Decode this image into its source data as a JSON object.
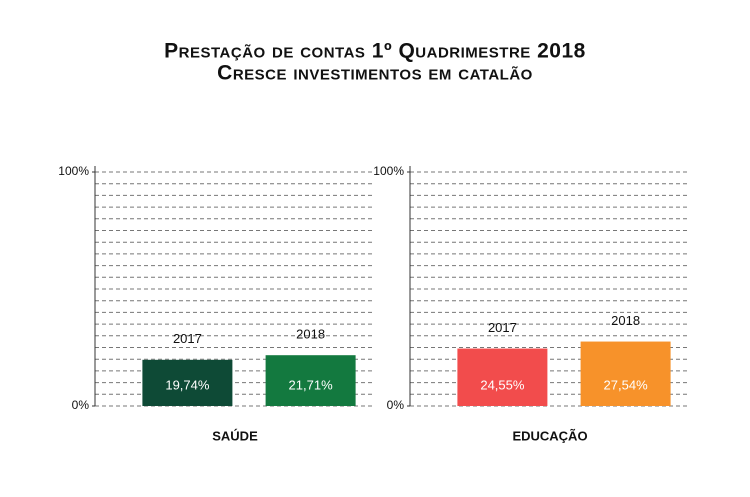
{
  "header": {
    "title": "Prestação de contas 1º Quadrimestre 2018",
    "subtitle": "Cresce investimentos em catalão"
  },
  "chart_data": [
    {
      "type": "bar",
      "xlabel": "SAÚDE",
      "categories": [
        "2017",
        "2018"
      ],
      "values": [
        19.74,
        21.71
      ],
      "value_labels": [
        "19,74%",
        "21,71%"
      ],
      "colors": [
        "#0e4a36",
        "#13793f"
      ],
      "ylim": [
        0,
        100
      ],
      "yticks": [
        {
          "value": 0,
          "label": "0%"
        },
        {
          "value": 100,
          "label": "100%"
        }
      ],
      "ygrid": [
        0,
        5,
        10,
        15,
        20,
        25,
        30,
        35,
        40,
        45,
        50,
        55,
        60,
        65,
        70,
        75,
        80,
        85,
        90,
        95,
        100
      ]
    },
    {
      "type": "bar",
      "xlabel": "EDUCAÇÃO",
      "categories": [
        "2017",
        "2018"
      ],
      "values": [
        24.55,
        27.54
      ],
      "value_labels": [
        "24,55%",
        "27,54%"
      ],
      "colors": [
        "#f24c4c",
        "#f7922a"
      ],
      "ylim": [
        0,
        100
      ],
      "yticks": [
        {
          "value": 0,
          "label": "0%"
        },
        {
          "value": 100,
          "label": "100%"
        }
      ],
      "ygrid": [
        0,
        5,
        10,
        15,
        20,
        25,
        30,
        35,
        40,
        45,
        50,
        55,
        60,
        65,
        70,
        75,
        80,
        85,
        90,
        95,
        100
      ]
    }
  ]
}
